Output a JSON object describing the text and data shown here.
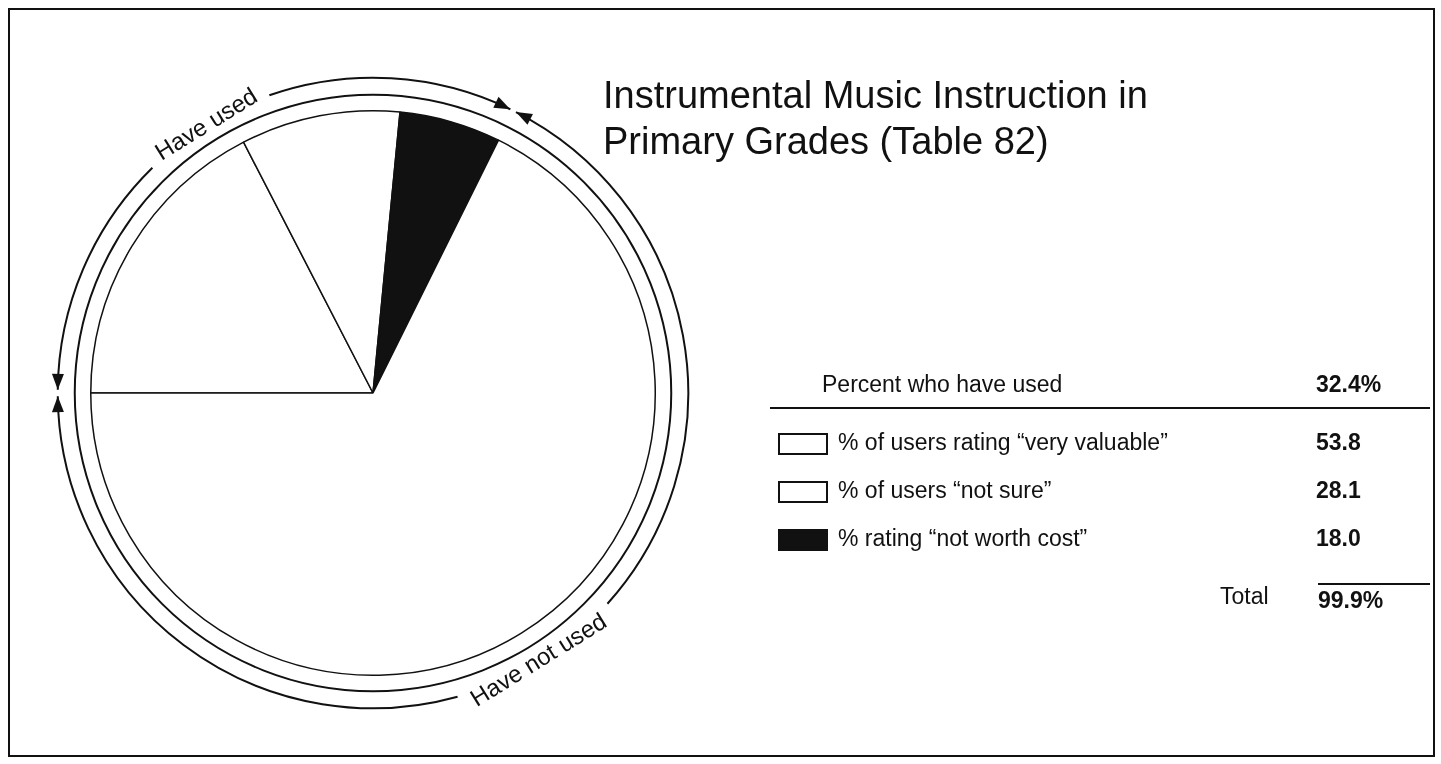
{
  "chart_data": {
    "type": "pie",
    "title": "Instrumental Music Instruction in Primary Grades (Table 82)",
    "categories": [
      "% of users rating “very valuable”",
      "% of users “not sure”",
      "% rating “not worth cost”",
      "Have not used"
    ],
    "values": [
      17.4,
      9.1,
      5.8,
      67.6
    ],
    "colors": [
      "#ffffff",
      "#ffffff",
      "#111111",
      "#ffffff"
    ],
    "legend": "right",
    "annotations": [
      "Have used",
      "Percent who have used",
      "32.4%",
      "53.8",
      "28.1",
      "18.0",
      "Total",
      "99.9%"
    ]
  }
}
